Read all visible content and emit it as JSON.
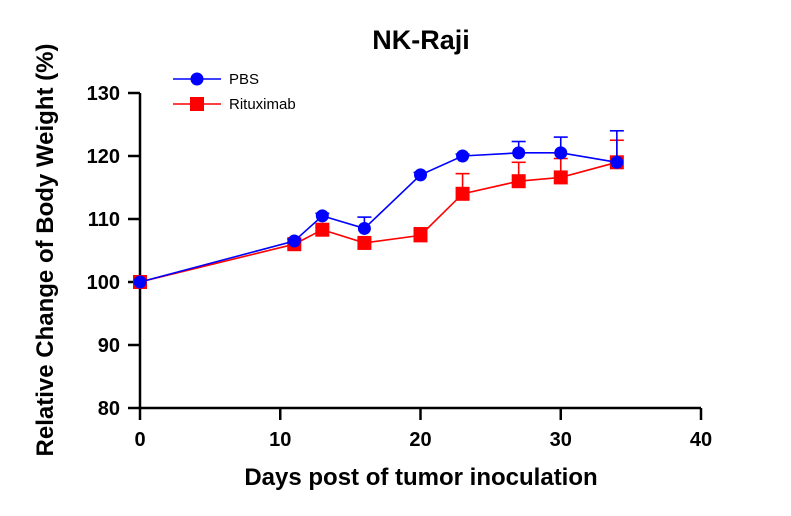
{
  "chart_data": {
    "type": "line",
    "title": "NK-Raji",
    "xlabel": "Days post of tumor inoculation",
    "ylabel": "Relative Change of Body Weight (%)",
    "xlim": [
      0,
      40
    ],
    "ylim": [
      80,
      130
    ],
    "xticks": [
      0,
      10,
      20,
      30,
      40
    ],
    "yticks": [
      80,
      90,
      100,
      110,
      120,
      130
    ],
    "legend_position": "top-left",
    "series": [
      {
        "name": "PBS",
        "color": "#0000ff",
        "marker": "circle",
        "x": [
          0,
          11,
          13,
          16,
          20,
          23,
          27,
          30,
          34
        ],
        "values": [
          100,
          106.5,
          110.5,
          108.5,
          117,
          120,
          120.5,
          120.5,
          119
        ],
        "error": [
          0,
          0.3,
          0.4,
          1.8,
          0.4,
          0.3,
          1.8,
          2.5,
          5
        ]
      },
      {
        "name": "Rituximab",
        "color": "#ff0000",
        "marker": "square",
        "x": [
          0,
          11,
          13,
          16,
          20,
          23,
          27,
          30,
          34
        ],
        "values": [
          100,
          106,
          108.3,
          106.2,
          107.4,
          114,
          116,
          116.6,
          119
        ],
        "error": [
          0,
          0.3,
          0.4,
          0.5,
          1.2,
          3.2,
          3,
          3,
          3.5
        ]
      }
    ]
  }
}
